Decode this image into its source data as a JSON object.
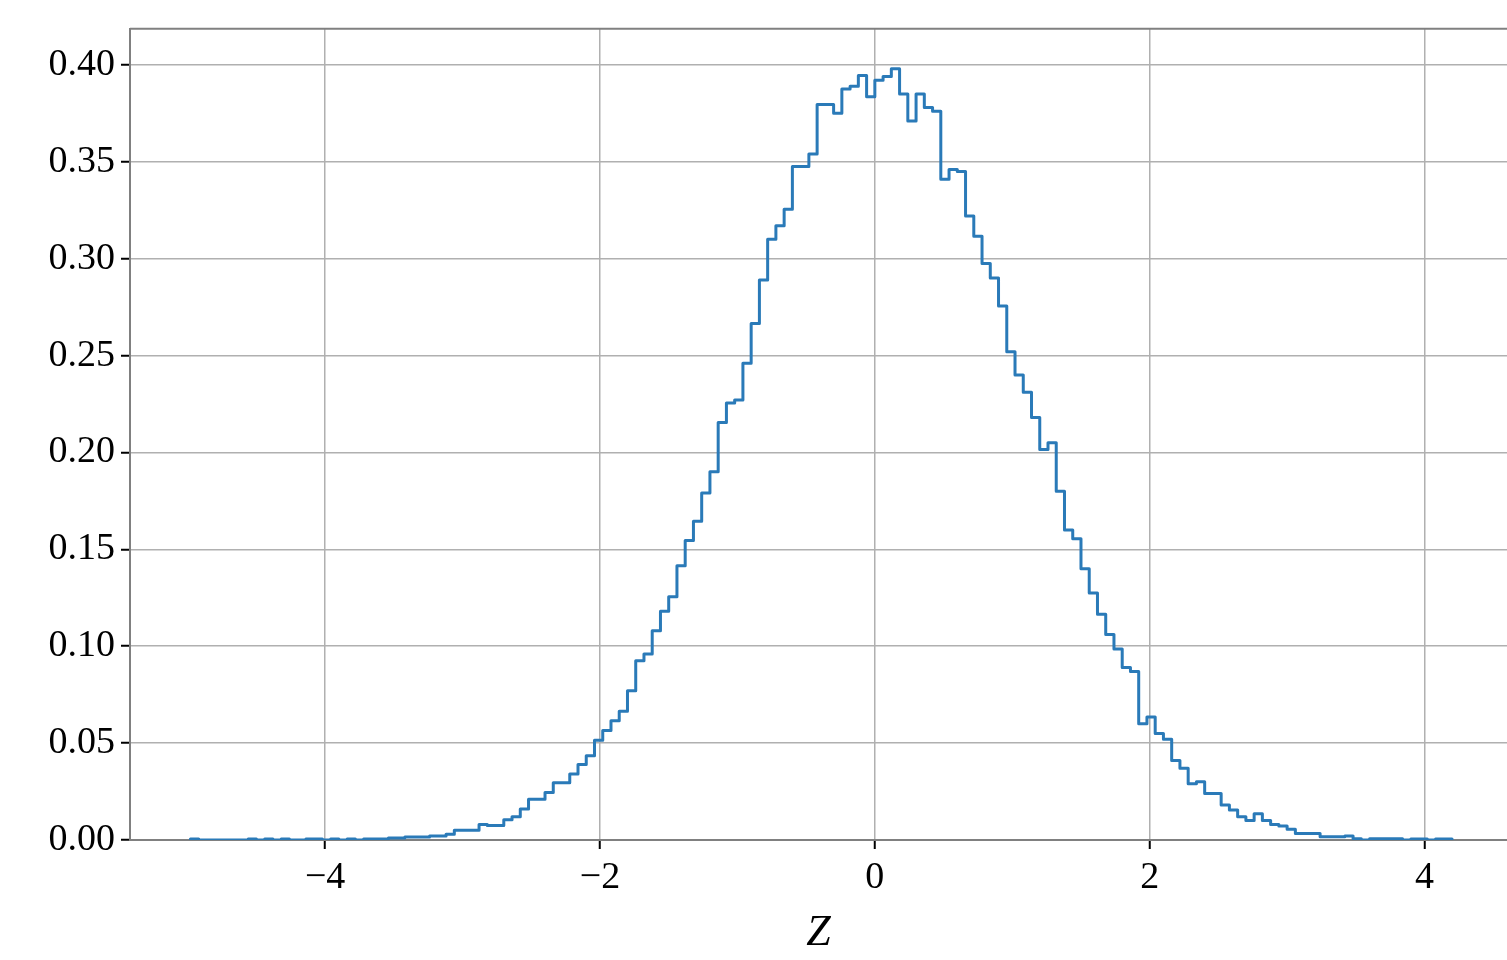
{
  "chart_data": {
    "type": "histogram",
    "xlabel": "Z",
    "bins": [
      -4.98,
      -4.92,
      -4.86,
      -4.8,
      -4.74,
      -4.68,
      -4.62,
      -4.56,
      -4.5,
      -4.44,
      -4.38,
      -4.32,
      -4.26,
      -4.2,
      -4.14,
      -4.08,
      -4.02,
      -3.96,
      -3.9,
      -3.84,
      -3.78,
      -3.72,
      -3.66,
      -3.6,
      -3.54,
      -3.48,
      -3.42,
      -3.36,
      -3.3,
      -3.24,
      -3.18,
      -3.12,
      -3.06,
      -3,
      -2.94,
      -2.88,
      -2.82,
      -2.76,
      -2.7,
      -2.64,
      -2.58,
      -2.52,
      -2.46,
      -2.4,
      -2.34,
      -2.28,
      -2.22,
      -2.16,
      -2.1,
      -2.04,
      -1.98,
      -1.92,
      -1.86,
      -1.8,
      -1.74,
      -1.68,
      -1.62,
      -1.56,
      -1.5,
      -1.44,
      -1.38,
      -1.32,
      -1.26,
      -1.2,
      -1.14,
      -1.08,
      -1.02,
      -0.96,
      -0.9,
      -0.84,
      -0.78,
      -0.72,
      -0.66,
      -0.6,
      -0.54,
      -0.48,
      -0.42,
      -0.36,
      -0.3,
      -0.24,
      -0.18,
      -0.12,
      -0.06,
      0,
      0.06,
      0.12,
      0.18,
      0.24,
      0.3,
      0.36,
      0.42,
      0.48,
      0.54,
      0.6,
      0.66,
      0.72,
      0.78,
      0.84,
      0.9,
      0.96,
      1.02,
      1.08,
      1.14,
      1.2,
      1.26,
      1.32,
      1.38,
      1.44,
      1.5,
      1.56,
      1.62,
      1.68,
      1.74,
      1.8,
      1.86,
      1.92,
      1.98,
      2.04,
      2.1,
      2.16,
      2.22,
      2.28,
      2.34,
      2.4,
      2.46,
      2.52,
      2.58,
      2.64,
      2.7,
      2.76,
      2.82,
      2.88,
      2.94,
      3,
      3.06,
      3.12,
      3.18,
      3.24,
      3.3,
      3.36,
      3.42,
      3.48,
      3.54,
      3.6,
      3.66,
      3.72,
      3.78,
      3.84,
      3.9,
      3.96,
      4.02,
      4.08,
      4.14,
      4.2
    ],
    "values": [
      0.0005,
      0,
      0,
      0,
      0,
      0,
      0,
      0.0005,
      0,
      0.0005,
      0,
      0.0005,
      0,
      0,
      0.0005,
      0.0005,
      0,
      0.0005,
      0,
      0.0005,
      0,
      0.0005,
      0.0005,
      0.0005,
      0.001,
      0.001,
      0.0015,
      0.0015,
      0.0015,
      0.002,
      0.002,
      0.003,
      0.005,
      0.005,
      0.005,
      0.008,
      0.0075,
      0.0075,
      0.0105,
      0.012,
      0.016,
      0.021,
      0.021,
      0.0245,
      0.0295,
      0.0295,
      0.034,
      0.039,
      0.0435,
      0.0515,
      0.0565,
      0.0615,
      0.0665,
      0.077,
      0.0925,
      0.096,
      0.108,
      0.118,
      0.1255,
      0.1415,
      0.1545,
      0.1645,
      0.179,
      0.19,
      0.2155,
      0.2255,
      0.227,
      0.246,
      0.2665,
      0.289,
      0.31,
      0.317,
      0.3255,
      0.3475,
      0.3475,
      0.354,
      0.3795,
      0.3795,
      0.375,
      0.3875,
      0.389,
      0.3945,
      0.3835,
      0.392,
      0.394,
      0.398,
      0.385,
      0.371,
      0.385,
      0.378,
      0.376,
      0.341,
      0.346,
      0.345,
      0.322,
      0.3115,
      0.2975,
      0.29,
      0.2755,
      0.252,
      0.24,
      0.231,
      0.218,
      0.2015,
      0.205,
      0.18,
      0.16,
      0.1555,
      0.14,
      0.1275,
      0.1165,
      0.106,
      0.0985,
      0.089,
      0.087,
      0.06,
      0.0635,
      0.055,
      0.052,
      0.041,
      0.037,
      0.029,
      0.03,
      0.024,
      0.024,
      0.018,
      0.0155,
      0.012,
      0.01,
      0.0135,
      0.01,
      0.008,
      0.0072,
      0.0055,
      0.0034,
      0.0034,
      0.0034,
      0.0017,
      0.0017,
      0.0017,
      0.002,
      0.0007,
      0,
      0.0007,
      0.0007,
      0.0007,
      0.0007,
      0,
      0.0005,
      0.0005,
      0,
      0.0005,
      0.0005
    ],
    "color": "#2a7ab8",
    "xlim": [
      -5.42,
      4.6
    ],
    "xticks": [
      {
        "value": -4,
        "label": "−4"
      },
      {
        "value": -2,
        "label": "−2"
      },
      0,
      2,
      4
    ],
    "ylim": [
      0,
      0.4186
    ],
    "yticks": [
      {
        "value": 0,
        "label": "0.00"
      },
      {
        "value": 0.05,
        "label": "0.05"
      },
      {
        "value": 0.1,
        "label": "0.10"
      },
      {
        "value": 0.15,
        "label": "0.15"
      },
      {
        "value": 0.2,
        "label": "0.20"
      },
      {
        "value": 0.25,
        "label": "0.25"
      },
      {
        "value": 0.3,
        "label": "0.30"
      },
      {
        "value": 0.35,
        "label": "0.35"
      },
      {
        "value": 0.4,
        "label": "0.40"
      }
    ],
    "grid": true
  }
}
